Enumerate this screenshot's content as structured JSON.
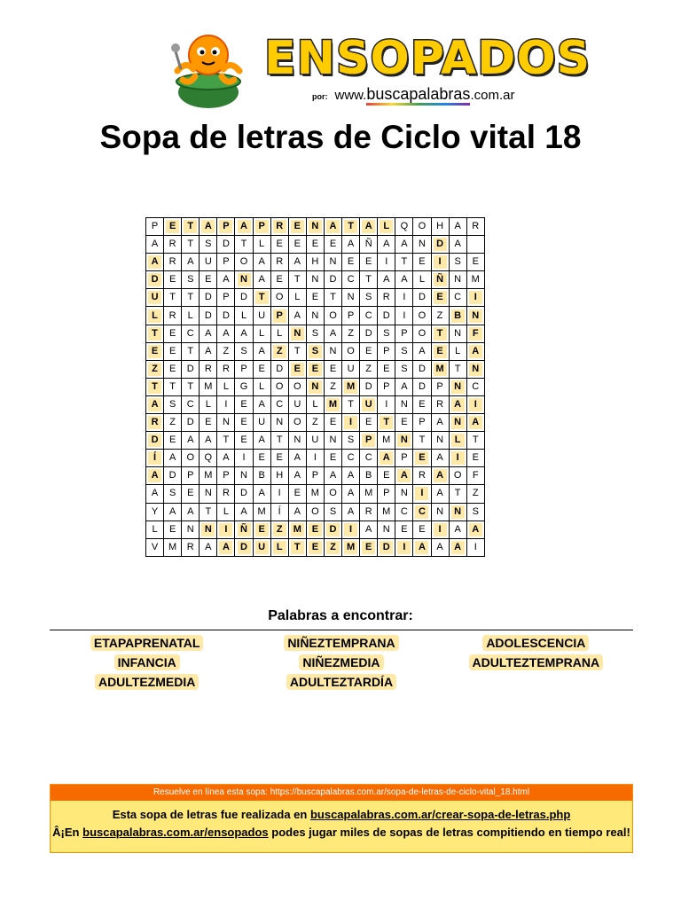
{
  "logo": {
    "brand": "ENSOPADOS",
    "by_prefix": "por:",
    "site_prefix": "www.",
    "site_main": "buscapalabras",
    "site_suffix": ".com.ar"
  },
  "title": "Sopa de letras de Ciclo vital 18",
  "grid": {
    "rows": [
      "PETAPAPRENATALQOHAR",
      "ARTSDTLEEEEAÑAANDA",
      "ARAUPOARAHNEEITEISE",
      "DESEANAETNDCTAALÑNM",
      "UTTDPDTOLETNSRIDECI",
      "LRLDDLUPANOPCDIOZBN",
      "TECAAALLNSAZDSPOTNF",
      "EETAZSAZTSNOEPSAELA",
      "ZEDRRPEDEEEUZESDMTN",
      "TTTMLGLOONZMDPADPNC",
      "ASCLIEACULMTUINERAI",
      "RZDENEUNOZEIETEPANA",
      "DEAATEATNUNSPMNTNLT",
      "ÍAOQAIEEAIECCAPEAIE",
      "ADPMPNBHAPAABEARAOF",
      "ASENRDAIEMOAMPNIATZ",
      "YAATLAMÍAOSARMCCNNS",
      "LENNIÑEZMEDIANEEIAA",
      "VMRAADULTEZMEDIAAAI"
    ],
    "highlight": [
      [
        1,
        2,
        3,
        4,
        5,
        6,
        7,
        8,
        9,
        10,
        11,
        12,
        13
      ],
      [
        16
      ],
      [
        0,
        16
      ],
      [
        0,
        5,
        16
      ],
      [
        0,
        6,
        16,
        18
      ],
      [
        0,
        7,
        17,
        18
      ],
      [
        0,
        8,
        16,
        18
      ],
      [
        0,
        7,
        9,
        16,
        18
      ],
      [
        0,
        8,
        9,
        16,
        18
      ],
      [
        0,
        9,
        11,
        17
      ],
      [
        0,
        10,
        12,
        17,
        18
      ],
      [
        0,
        11,
        13,
        17,
        18
      ],
      [
        0,
        12,
        14,
        17
      ],
      [
        0,
        13,
        15,
        17
      ],
      [
        0,
        14,
        16
      ],
      [
        15
      ],
      [
        15,
        17
      ],
      [
        3,
        4,
        5,
        6,
        7,
        8,
        9,
        10,
        11,
        16,
        18
      ],
      [
        4,
        5,
        6,
        7,
        8,
        9,
        10,
        11,
        12,
        13,
        14,
        15,
        17
      ]
    ]
  },
  "words_title": "Palabras a encontrar:",
  "words": [
    "ETAPAPRENATAL",
    "NIÑEZTEMPRANA",
    "ADOLESCENCIA",
    "INFANCIA",
    "NIÑEZMEDIA",
    "ADULTEZTEMPRANA",
    "ADULTEZMEDIA",
    "ADULTEZTARDÍA"
  ],
  "footer": {
    "online": "Resuelve en línea esta sopa: https://buscapalabras.com.ar/sopa-de-letras-de-ciclo-vital_18.html",
    "line1_prefix": "Esta sopa de letras fue realizada en ",
    "line1_link": "buscapalabras.com.ar/crear-sopa-de-letras.php",
    "line2_prefix": "Â¡En ",
    "line2_link": "buscapalabras.com.ar/ensopados",
    "line2_suffix": " podes jugar miles de sopas de letras compitiendo en tiempo real!"
  }
}
